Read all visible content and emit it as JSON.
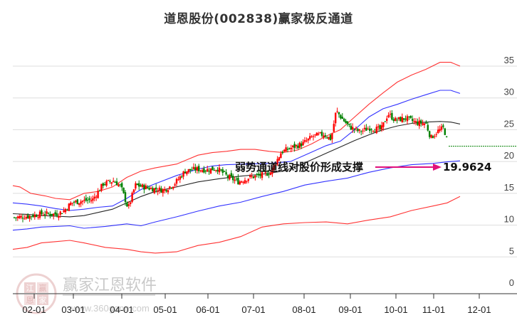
{
  "title": "道恩股份(002838)赢家极反通道",
  "watermark": {
    "brand": "赢家江恩软件",
    "url": "www.360gann.com",
    "logo_chars": [
      "江",
      "赢",
      "恩",
      "家"
    ]
  },
  "colors": {
    "outer_band": "#ff0000",
    "inner_band": "#0000ff",
    "mid_line": "#000000",
    "candle_up": "#ff0000",
    "candle_down": "#008000",
    "arrow": "#e0107a",
    "grid": "#dddddd"
  },
  "annotation": {
    "text": "弱势通道线对股价形成支撑",
    "value": "19.9624"
  },
  "chart_data": {
    "type": "candlestick",
    "title": "道恩股份(002838)赢家极反通道",
    "xlabel": "",
    "ylabel": "",
    "ylim": [
      0,
      36
    ],
    "yticks": [
      0,
      5,
      10,
      15,
      20,
      25,
      30,
      35
    ],
    "xticks": [
      "02-01",
      "03-01",
      "04-01",
      "05-01",
      "06-01",
      "07-01",
      "08-01",
      "09-01",
      "10-01",
      "11-01",
      "12-01"
    ],
    "grid": true,
    "y_axis_position": "right",
    "series": [
      {
        "name": "upper_outer (red)",
        "points": [
          [
            0,
            16.2
          ],
          [
            10,
            16.0
          ],
          [
            25,
            15.0
          ],
          [
            45,
            14.6
          ],
          [
            60,
            14.2
          ],
          [
            80,
            14.0
          ],
          [
            100,
            15.0
          ],
          [
            120,
            15.3
          ],
          [
            140,
            16.0
          ],
          [
            160,
            17.5
          ],
          [
            180,
            18.5
          ],
          [
            200,
            19.0
          ],
          [
            230,
            19.6
          ],
          [
            260,
            21.0
          ],
          [
            280,
            21.4
          ],
          [
            300,
            21.6
          ],
          [
            320,
            21.9
          ],
          [
            340,
            21.9
          ],
          [
            360,
            21.6
          ],
          [
            380,
            21.4
          ],
          [
            400,
            21.8
          ],
          [
            420,
            22.8
          ],
          [
            440,
            24.0
          ],
          [
            460,
            25.0
          ],
          [
            480,
            27.0
          ],
          [
            500,
            29.0
          ],
          [
            520,
            30.8
          ],
          [
            540,
            32.5
          ],
          [
            560,
            33.6
          ],
          [
            580,
            34.5
          ],
          [
            600,
            35.6
          ],
          [
            615,
            35.6
          ],
          [
            628,
            35.0
          ]
        ]
      },
      {
        "name": "upper_inner (blue)",
        "points": [
          [
            0,
            13.5
          ],
          [
            20,
            13.3
          ],
          [
            40,
            13.0
          ],
          [
            60,
            12.6
          ],
          [
            80,
            12.3
          ],
          [
            100,
            12.5
          ],
          [
            120,
            12.8
          ],
          [
            140,
            13.0
          ],
          [
            160,
            14.2
          ],
          [
            180,
            15.6
          ],
          [
            200,
            16.5
          ],
          [
            230,
            17.8
          ],
          [
            260,
            18.8
          ],
          [
            280,
            19.3
          ],
          [
            300,
            19.5
          ],
          [
            330,
            19.6
          ],
          [
            360,
            19.7
          ],
          [
            390,
            20.0
          ],
          [
            420,
            21.5
          ],
          [
            440,
            22.5
          ],
          [
            460,
            23.2
          ],
          [
            480,
            25.0
          ],
          [
            500,
            27.0
          ],
          [
            520,
            28.3
          ],
          [
            540,
            29.0
          ],
          [
            560,
            29.8
          ],
          [
            580,
            30.5
          ],
          [
            600,
            31.2
          ],
          [
            615,
            31.2
          ],
          [
            628,
            30.7
          ]
        ]
      },
      {
        "name": "middle (black)",
        "points": [
          [
            0,
            11.8
          ],
          [
            20,
            11.7
          ],
          [
            40,
            11.5
          ],
          [
            60,
            11.4
          ],
          [
            80,
            11.3
          ],
          [
            100,
            11.5
          ],
          [
            120,
            12.0
          ],
          [
            140,
            12.5
          ],
          [
            160,
            13.5
          ],
          [
            180,
            14.5
          ],
          [
            200,
            15.3
          ],
          [
            230,
            16.0
          ],
          [
            260,
            16.8
          ],
          [
            290,
            17.3
          ],
          [
            320,
            17.7
          ],
          [
            350,
            18.0
          ],
          [
            380,
            18.5
          ],
          [
            400,
            19.3
          ],
          [
            420,
            20.3
          ],
          [
            440,
            21.3
          ],
          [
            460,
            22.3
          ],
          [
            480,
            23.3
          ],
          [
            500,
            24.2
          ],
          [
            520,
            25.0
          ],
          [
            540,
            25.6
          ],
          [
            560,
            26.0
          ],
          [
            580,
            26.2
          ],
          [
            600,
            26.3
          ],
          [
            615,
            26.2
          ],
          [
            628,
            25.9
          ]
        ]
      },
      {
        "name": "lower_inner (blue)",
        "points": [
          [
            0,
            9.2
          ],
          [
            20,
            9.4
          ],
          [
            40,
            9.7
          ],
          [
            60,
            9.8
          ],
          [
            80,
            9.9
          ],
          [
            100,
            9.5
          ],
          [
            130,
            9.8
          ],
          [
            160,
            10.2
          ],
          [
            180,
            9.9
          ],
          [
            200,
            10.5
          ],
          [
            230,
            11.3
          ],
          [
            260,
            12.2
          ],
          [
            290,
            13.0
          ],
          [
            320,
            13.6
          ],
          [
            350,
            14.5
          ],
          [
            380,
            15.3
          ],
          [
            410,
            16.3
          ],
          [
            440,
            16.9
          ],
          [
            470,
            17.4
          ],
          [
            500,
            18.3
          ],
          [
            530,
            19.0
          ],
          [
            560,
            19.5
          ],
          [
            590,
            19.7
          ],
          [
            610,
            19.95
          ],
          [
            628,
            20.1
          ]
        ]
      },
      {
        "name": "lower_outer (red)",
        "points": [
          [
            0,
            6.2
          ],
          [
            20,
            6.5
          ],
          [
            40,
            7.2
          ],
          [
            60,
            7.4
          ],
          [
            80,
            7.6
          ],
          [
            100,
            7.2
          ],
          [
            130,
            6.5
          ],
          [
            160,
            6.2
          ],
          [
            180,
            5.8
          ],
          [
            200,
            5.6
          ],
          [
            230,
            5.8
          ],
          [
            260,
            6.8
          ],
          [
            290,
            7.3
          ],
          [
            320,
            8.2
          ],
          [
            350,
            9.7
          ],
          [
            380,
            10.2
          ],
          [
            410,
            10.4
          ],
          [
            440,
            10.5
          ],
          [
            470,
            10.2
          ],
          [
            500,
            10.8
          ],
          [
            530,
            11.3
          ],
          [
            560,
            12.3
          ],
          [
            590,
            13.0
          ],
          [
            610,
            13.5
          ],
          [
            628,
            14.5
          ]
        ]
      },
      {
        "name": "price_close_approx",
        "points": [
          [
            20,
            11.2
          ],
          [
            40,
            11.4
          ],
          [
            60,
            11.8
          ],
          [
            80,
            11.7
          ],
          [
            90,
            12.3
          ],
          [
            100,
            13.5
          ],
          [
            115,
            13.8
          ],
          [
            130,
            14.0
          ],
          [
            145,
            16.5
          ],
          [
            160,
            17.0
          ],
          [
            170,
            16.0
          ],
          [
            180,
            12.6
          ],
          [
            190,
            16.3
          ],
          [
            210,
            15.8
          ],
          [
            230,
            15.5
          ],
          [
            245,
            16.5
          ],
          [
            260,
            18.5
          ],
          [
            275,
            18.8
          ],
          [
            290,
            18.7
          ],
          [
            305,
            18.9
          ],
          [
            320,
            17.6
          ],
          [
            335,
            16.8
          ],
          [
            350,
            17.5
          ],
          [
            365,
            17.8
          ],
          [
            380,
            18.3
          ],
          [
            395,
            21.5
          ],
          [
            410,
            22.2
          ],
          [
            425,
            22.8
          ],
          [
            440,
            24.0
          ],
          [
            455,
            24.3
          ],
          [
            465,
            23.5
          ],
          [
            472,
            28.0
          ],
          [
            480,
            26.8
          ],
          [
            490,
            25.5
          ],
          [
            505,
            24.7
          ],
          [
            520,
            25.3
          ],
          [
            535,
            25.0
          ],
          [
            545,
            27.5
          ],
          [
            555,
            26.5
          ],
          [
            570,
            26.8
          ],
          [
            585,
            26.1
          ],
          [
            598,
            26.0
          ],
          [
            605,
            23.7
          ],
          [
            615,
            24.8
          ],
          [
            623,
            25.3
          ],
          [
            630,
            22.4
          ]
        ]
      },
      {
        "name": "flat_projection (green dotted)",
        "points": [
          [
            630,
            22.4
          ],
          [
            726,
            22.4
          ]
        ]
      }
    ],
    "annotations": [
      {
        "text": "弱势通道线对股价形成支撑",
        "arrow_to_value": 19.9624
      }
    ]
  }
}
